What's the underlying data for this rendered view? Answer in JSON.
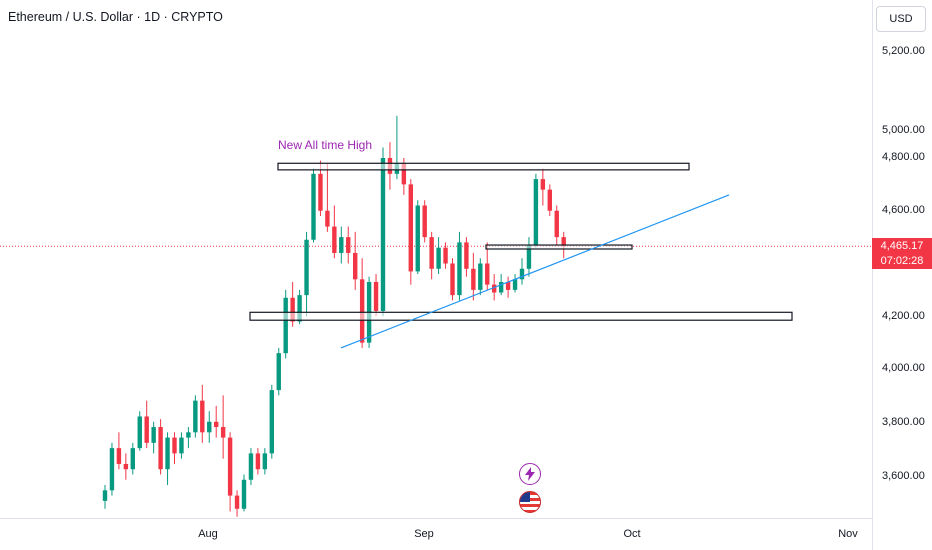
{
  "header": {
    "symbol_title": "Ethereum / U.S. Dollar · 1D · CRYPTO"
  },
  "currency_button": {
    "label": "USD"
  },
  "price_axis": {
    "ticks": [
      "5,200.00",
      "5,000.00",
      "4,800.00",
      "4,600.00",
      "4,200.00",
      "4,000.00",
      "3,800.00",
      "3,600.00"
    ],
    "last_price": "4,465.17",
    "countdown": "07:02:28"
  },
  "time_axis": {
    "labels": [
      "Aug",
      "Sep",
      "Oct",
      "Nov"
    ]
  },
  "annotation": {
    "text": "New All time High"
  },
  "colors": {
    "up": "#089981",
    "down": "#f23645",
    "trendline": "#2196f3",
    "annotation": "#9c27b0"
  },
  "icons": {
    "event_1": "lightning-icon",
    "event_2": "us-flag-icon"
  },
  "chart_data": {
    "type": "candlestick",
    "ylim": [
      3480,
      5300
    ],
    "candles": [
      {
        "o": 3500,
        "h": 3560,
        "l": 3470,
        "c": 3540
      },
      {
        "o": 3540,
        "h": 3720,
        "l": 3520,
        "c": 3700
      },
      {
        "o": 3700,
        "h": 3760,
        "l": 3620,
        "c": 3640
      },
      {
        "o": 3640,
        "h": 3680,
        "l": 3580,
        "c": 3620
      },
      {
        "o": 3620,
        "h": 3720,
        "l": 3600,
        "c": 3700
      },
      {
        "o": 3700,
        "h": 3840,
        "l": 3690,
        "c": 3820
      },
      {
        "o": 3820,
        "h": 3880,
        "l": 3700,
        "c": 3720
      },
      {
        "o": 3720,
        "h": 3800,
        "l": 3680,
        "c": 3780
      },
      {
        "o": 3780,
        "h": 3810,
        "l": 3600,
        "c": 3620
      },
      {
        "o": 3620,
        "h": 3760,
        "l": 3560,
        "c": 3740
      },
      {
        "o": 3740,
        "h": 3760,
        "l": 3640,
        "c": 3680
      },
      {
        "o": 3680,
        "h": 3760,
        "l": 3660,
        "c": 3740
      },
      {
        "o": 3740,
        "h": 3780,
        "l": 3700,
        "c": 3760
      },
      {
        "o": 3760,
        "h": 3900,
        "l": 3740,
        "c": 3880
      },
      {
        "o": 3880,
        "h": 3940,
        "l": 3720,
        "c": 3760
      },
      {
        "o": 3760,
        "h": 3840,
        "l": 3720,
        "c": 3800
      },
      {
        "o": 3800,
        "h": 3860,
        "l": 3740,
        "c": 3780
      },
      {
        "o": 3780,
        "h": 3900,
        "l": 3660,
        "c": 3740
      },
      {
        "o": 3740,
        "h": 3760,
        "l": 3460,
        "c": 3520
      },
      {
        "o": 3520,
        "h": 3540,
        "l": 3440,
        "c": 3470
      },
      {
        "o": 3470,
        "h": 3600,
        "l": 3460,
        "c": 3580
      },
      {
        "o": 3580,
        "h": 3700,
        "l": 3560,
        "c": 3680
      },
      {
        "o": 3680,
        "h": 3700,
        "l": 3600,
        "c": 3620
      },
      {
        "o": 3620,
        "h": 3700,
        "l": 3600,
        "c": 3680
      },
      {
        "o": 3680,
        "h": 3940,
        "l": 3660,
        "c": 3920
      },
      {
        "o": 3920,
        "h": 4080,
        "l": 3900,
        "c": 4060
      },
      {
        "o": 4060,
        "h": 4300,
        "l": 4040,
        "c": 4270
      },
      {
        "o": 4270,
        "h": 4330,
        "l": 4160,
        "c": 4180
      },
      {
        "o": 4180,
        "h": 4300,
        "l": 4170,
        "c": 4280
      },
      {
        "o": 4280,
        "h": 4520,
        "l": 4200,
        "c": 4490
      },
      {
        "o": 4490,
        "h": 4760,
        "l": 4480,
        "c": 4740
      },
      {
        "o": 4740,
        "h": 4790,
        "l": 4580,
        "c": 4600
      },
      {
        "o": 4600,
        "h": 4780,
        "l": 4520,
        "c": 4540
      },
      {
        "o": 4540,
        "h": 4620,
        "l": 4420,
        "c": 4440
      },
      {
        "o": 4440,
        "h": 4540,
        "l": 4400,
        "c": 4500
      },
      {
        "o": 4500,
        "h": 4540,
        "l": 4400,
        "c": 4440
      },
      {
        "o": 4440,
        "h": 4520,
        "l": 4300,
        "c": 4340
      },
      {
        "o": 4340,
        "h": 4420,
        "l": 4080,
        "c": 4100
      },
      {
        "o": 4100,
        "h": 4350,
        "l": 4080,
        "c": 4330
      },
      {
        "o": 4330,
        "h": 4360,
        "l": 4200,
        "c": 4220
      },
      {
        "o": 4220,
        "h": 4840,
        "l": 4200,
        "c": 4800
      },
      {
        "o": 4800,
        "h": 4860,
        "l": 4680,
        "c": 4740
      },
      {
        "o": 4740,
        "h": 4960,
        "l": 4720,
        "c": 4780
      },
      {
        "o": 4780,
        "h": 4800,
        "l": 4660,
        "c": 4700
      },
      {
        "o": 4700,
        "h": 4720,
        "l": 4320,
        "c": 4370
      },
      {
        "o": 4370,
        "h": 4640,
        "l": 4360,
        "c": 4620
      },
      {
        "o": 4620,
        "h": 4640,
        "l": 4480,
        "c": 4500
      },
      {
        "o": 4500,
        "h": 4520,
        "l": 4340,
        "c": 4380
      },
      {
        "o": 4380,
        "h": 4500,
        "l": 4360,
        "c": 4460
      },
      {
        "o": 4460,
        "h": 4480,
        "l": 4380,
        "c": 4400
      },
      {
        "o": 4400,
        "h": 4420,
        "l": 4260,
        "c": 4280
      },
      {
        "o": 4280,
        "h": 4520,
        "l": 4260,
        "c": 4480
      },
      {
        "o": 4480,
        "h": 4500,
        "l": 4350,
        "c": 4380
      },
      {
        "o": 4380,
        "h": 4440,
        "l": 4260,
        "c": 4300
      },
      {
        "o": 4300,
        "h": 4420,
        "l": 4280,
        "c": 4400
      },
      {
        "o": 4400,
        "h": 4480,
        "l": 4300,
        "c": 4320
      },
      {
        "o": 4320,
        "h": 4360,
        "l": 4260,
        "c": 4290
      },
      {
        "o": 4290,
        "h": 4360,
        "l": 4280,
        "c": 4330
      },
      {
        "o": 4330,
        "h": 4350,
        "l": 4270,
        "c": 4300
      },
      {
        "o": 4300,
        "h": 4360,
        "l": 4290,
        "c": 4340
      },
      {
        "o": 4340,
        "h": 4420,
        "l": 4320,
        "c": 4380
      },
      {
        "o": 4380,
        "h": 4500,
        "l": 4350,
        "c": 4470
      },
      {
        "o": 4470,
        "h": 4740,
        "l": 4460,
        "c": 4720
      },
      {
        "o": 4720,
        "h": 4760,
        "l": 4620,
        "c": 4680
      },
      {
        "o": 4680,
        "h": 4700,
        "l": 4580,
        "c": 4600
      },
      {
        "o": 4600,
        "h": 4620,
        "l": 4470,
        "c": 4500
      },
      {
        "o": 4500,
        "h": 4520,
        "l": 4420,
        "c": 4465
      }
    ],
    "trendline": {
      "start": 4080,
      "end": 4660
    },
    "zones": [
      {
        "name": "ath-zone",
        "top": 4780,
        "bottom": 4755
      },
      {
        "name": "mid-zone",
        "top": 4470,
        "bottom": 4455
      },
      {
        "name": "support-zone",
        "top": 4215,
        "bottom": 4185
      }
    ],
    "last_price": 4465.17
  }
}
